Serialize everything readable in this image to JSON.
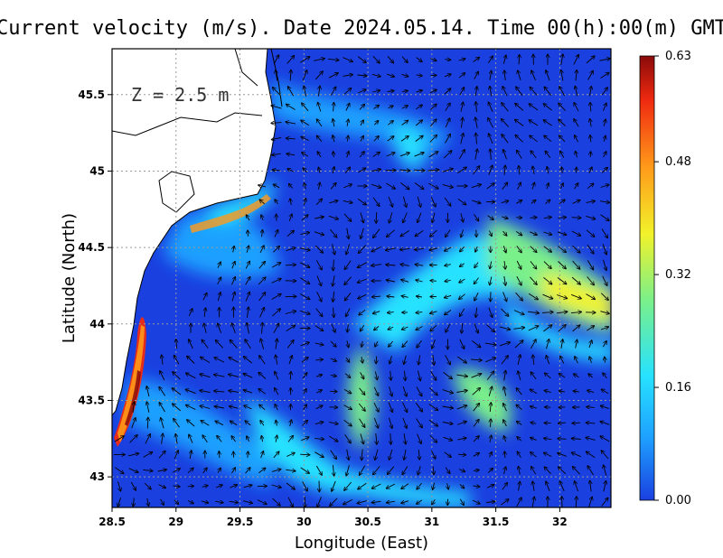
{
  "title": "Current velocity (m/s). Date 2024.05.14. Time 00(h):00(m) GMT",
  "depth_label": "Z = 2.5 m",
  "axes": {
    "xlabel": "Longitude (East)",
    "ylabel": "Latitude (North)",
    "xlim": [
      28.5,
      32.4
    ],
    "ylim": [
      42.8,
      45.8
    ],
    "x_ticks": [
      "28.5",
      "29",
      "29.5",
      "30",
      "30.5",
      "31",
      "31.5",
      "32"
    ],
    "y_ticks": [
      "45.5",
      "45",
      "44.5",
      "44",
      "43.5",
      "43"
    ],
    "grid": true
  },
  "colorbar": {
    "tick_labels": [
      "0.63",
      "0.48",
      "0.32",
      "0.16",
      "0.00"
    ],
    "range": [
      0.0,
      0.63
    ],
    "colors": [
      "#1a40e0",
      "#1ea0ff",
      "#27e2ff",
      "#7af08a",
      "#f2f22a",
      "#ff9a1a",
      "#f02a10",
      "#8a0a0a"
    ]
  },
  "colors": {
    "land": "#ffffff",
    "background_current": "#1a40e0",
    "arrow": "#000000"
  }
}
